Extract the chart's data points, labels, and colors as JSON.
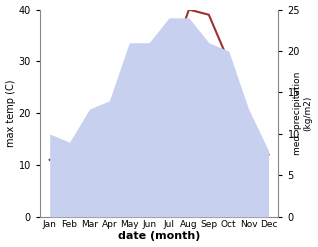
{
  "months": [
    "Jan",
    "Feb",
    "Mar",
    "Apr",
    "May",
    "Jun",
    "Jul",
    "Aug",
    "Sep",
    "Oct",
    "Nov",
    "Dec"
  ],
  "temp_max": [
    11,
    12.5,
    14,
    19,
    25,
    24,
    29,
    40,
    39,
    30,
    14,
    12
  ],
  "precipitation": [
    10,
    9,
    13,
    14,
    21,
    21,
    24,
    24,
    21,
    20,
    13,
    8
  ],
  "temp_color": "#993333",
  "precip_fill_color": "#c8d0f0",
  "xlabel": "date (month)",
  "ylabel_left": "max temp (C)",
  "ylabel_right": "med. precipitation\n(kg/m2)",
  "ylim_left": [
    0,
    40
  ],
  "ylim_right": [
    0,
    25
  ],
  "yticks_left": [
    0,
    10,
    20,
    30,
    40
  ],
  "yticks_right": [
    0,
    5,
    10,
    15,
    20,
    25
  ],
  "background_color": "#ffffff"
}
